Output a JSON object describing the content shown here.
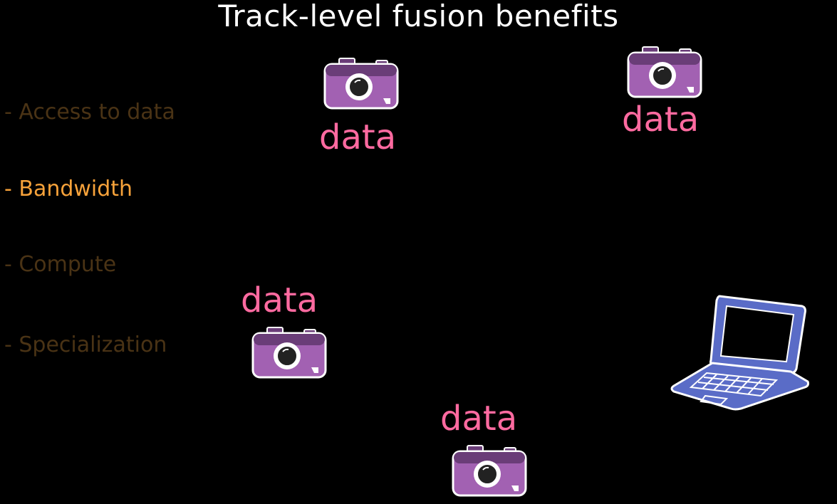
{
  "title": "Track-level fusion benefits",
  "bullets": [
    {
      "label": "- Access to data",
      "state": "dim"
    },
    {
      "label": "- Bandwidth",
      "state": "active"
    },
    {
      "label": "- Compute",
      "state": "dim"
    },
    {
      "label": "- Specialization",
      "state": "dim"
    }
  ],
  "data_label": "data",
  "colors": {
    "background": "#000000",
    "title": "#ffffff",
    "bullet_active": "#f7a23a",
    "bullet_dim": "#4a3315",
    "data_label": "#ff6aa0",
    "camera_body": "#a261b2",
    "camera_top": "#6a3d78",
    "laptop": "#5a6cc7"
  },
  "icons": {
    "camera": "camera-icon",
    "laptop": "laptop-icon"
  }
}
